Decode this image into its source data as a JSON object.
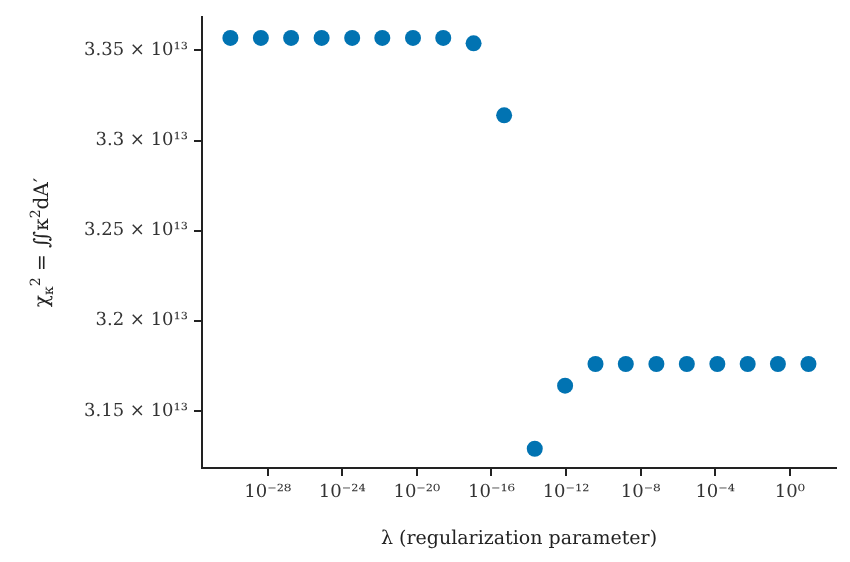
{
  "chart_data": {
    "type": "scatter",
    "xlabel": "λ (regularization parameter)",
    "ylabel": "χ$_{κ}$$^{2}$ = ∬κ$^{2}$dA′",
    "log": "x",
    "grid": false,
    "legend": false,
    "marker": "circle",
    "xlim": [
      3e-32,
      300
    ],
    "ylim": [
      31183000000000,
      33687000000000
    ],
    "xticks": [
      {
        "value": 1e-28,
        "label": "10⁻²⁸"
      },
      {
        "value": 1e-24,
        "label": "10⁻²⁴"
      },
      {
        "value": 1e-20,
        "label": "10⁻²⁰"
      },
      {
        "value": 1e-16,
        "label": "10⁻¹⁶"
      },
      {
        "value": 1e-12,
        "label": "10⁻¹²"
      },
      {
        "value": 1e-08,
        "label": "10⁻⁸"
      },
      {
        "value": 0.0001,
        "label": "10⁻⁴"
      },
      {
        "value": 1,
        "label": "10⁰"
      }
    ],
    "yticks": [
      {
        "value": 31500000000000,
        "label": "3.15 × 10¹³"
      },
      {
        "value": 32000000000000,
        "label": "3.2 × 10¹³"
      },
      {
        "value": 32500000000000,
        "label": "3.25 × 10¹³"
      },
      {
        "value": 33000000000000,
        "label": "3.3 × 10¹³"
      },
      {
        "value": 33500000000000,
        "label": "3.35 × 10¹³"
      }
    ],
    "series": [
      {
        "color": "#0173b2",
        "x": [
          1e-30,
          4.3e-29,
          1.8e-27,
          7.8e-26,
          3.4e-24,
          1.4e-22,
          6.2e-21,
          2.6e-19,
          1.1e-17,
          4.8e-16,
          2.1e-14,
          8.9e-13,
          3.8e-11,
          1.6e-09,
          7e-08,
          3e-06,
          0.00013,
          0.0055,
          0.23,
          10
        ],
        "values": [
          33570000000000,
          33570000000000,
          33570000000000,
          33570000000000,
          33570000000000,
          33570000000000,
          33570000000000,
          33570000000000,
          33540000000000,
          33140000000000,
          31290000000000,
          31640000000000,
          31760000000000,
          31760000000000,
          31760000000000,
          31760000000000,
          31760000000000,
          31760000000000,
          31760000000000,
          31760000000000
        ]
      }
    ]
  }
}
